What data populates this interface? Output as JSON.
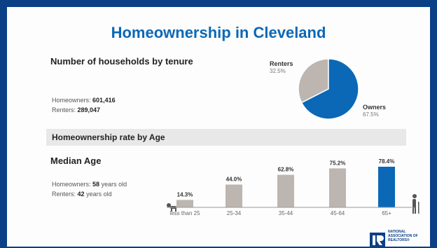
{
  "title": "Homeownership in Cleveland",
  "households": {
    "heading": "Number of households by tenure",
    "homeowners_label": "Homeowners:",
    "homeowners_value": "601,416",
    "renters_label": "Renters:",
    "renters_value": "289,047"
  },
  "section_heading": "Homeownership rate by Age",
  "median": {
    "heading": "Median Age",
    "homeowners_label": "Homeowners:",
    "homeowners_value": "58",
    "homeowners_suffix": "years old",
    "renters_label": "Renters:",
    "renters_value": "42",
    "renters_suffix": "years old"
  },
  "logo": {
    "line1": "NATIONAL",
    "line2": "ASSOCIATION OF",
    "line3": "REALTORS®"
  },
  "colors": {
    "blue": "#0b68b6",
    "gray": "#bdb5b0",
    "dark_frame": "#0b3f86"
  },
  "chart_data": [
    {
      "type": "pie",
      "slices": [
        {
          "label": "Renters",
          "value": 32.5,
          "display": "32.5%",
          "color": "#bdb5b0"
        },
        {
          "label": "Owners",
          "value": 67.5,
          "display": "67.5%",
          "color": "#0b68b6"
        }
      ]
    },
    {
      "type": "bar",
      "categories": [
        "less than 25",
        "25-34",
        "35-44",
        "45-64",
        "65+"
      ],
      "values": [
        14.3,
        44.0,
        62.8,
        75.2,
        78.4
      ],
      "labels": [
        "14.3%",
        "44.0%",
        "62.8%",
        "75.2%",
        "78.4%"
      ],
      "highlight_index": 4,
      "ylim": [
        0,
        100
      ]
    }
  ]
}
